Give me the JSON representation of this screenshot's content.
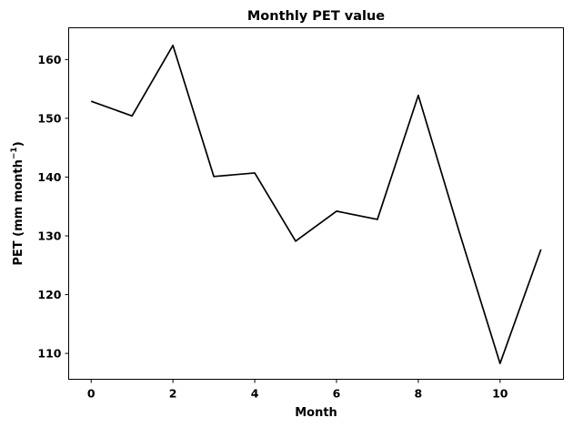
{
  "chart_data": {
    "type": "line",
    "title": "Monthly PET value",
    "xlabel": "Month",
    "ylabel_prefix": "PET (mm month",
    "ylabel_exponent": "−1",
    "ylabel_suffix": ")",
    "x": [
      0,
      1,
      2,
      3,
      4,
      5,
      6,
      7,
      8,
      9,
      10,
      11
    ],
    "y": [
      152.9,
      150.4,
      162.4,
      140.1,
      140.7,
      129.1,
      134.2,
      132.8,
      153.9,
      130.7,
      108.3,
      127.7
    ],
    "xlim": [
      -0.55,
      11.55
    ],
    "ylim": [
      105.6,
      165.4
    ],
    "xticks": [
      0,
      2,
      4,
      6,
      8,
      10
    ],
    "yticks": [
      110,
      120,
      130,
      140,
      150,
      160
    ],
    "line_color": "#000000",
    "grid": false,
    "legend": "none"
  }
}
